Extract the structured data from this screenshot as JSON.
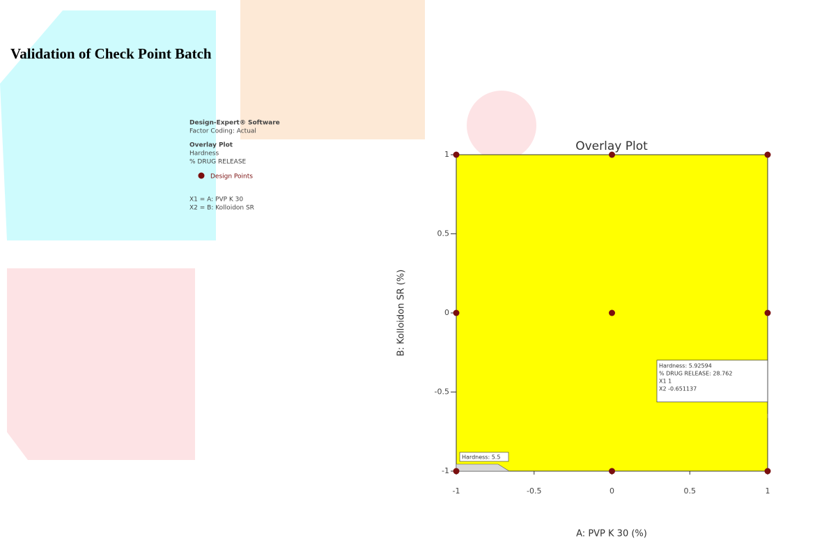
{
  "heading": "Validation of Check Point Batch",
  "info_panel": {
    "software": "Design-Expert® Software",
    "coding": "Factor Coding: Actual",
    "plot_name": "Overlay Plot",
    "responses": [
      "Hardness",
      "% DRUG RELEASE"
    ],
    "factors": [
      "X1 = A: PVP K 30",
      "X2 = B: Kolloidon SR"
    ]
  },
  "chart_data": {
    "type": "scatter",
    "title": "Overlay Plot",
    "x_label": "A: PVP K 30 (%)",
    "y_label": "B: Kolloidon SR (%)",
    "series": [
      {
        "name": "Design Points",
        "color": "#7a0f0f",
        "x": [
          -1,
          0,
          1,
          -1,
          0,
          1,
          -1,
          0,
          1
        ],
        "values": [
          1,
          1,
          1,
          0,
          0,
          0,
          -1,
          -1,
          -1
        ]
      }
    ],
    "xlim": [
      -1,
      1
    ],
    "ylim": [
      -1,
      1
    ],
    "xticks": [
      -1,
      -0.5,
      0,
      0.5,
      1
    ],
    "yticks": [
      -1,
      -0.5,
      0,
      0.5,
      1
    ],
    "region_color": "#ffff00",
    "contour_label": "Hardness: 5.5",
    "flag": {
      "x": 1,
      "y": -0.651137,
      "lines": [
        "Hardness:  5.92594",
        "% DRUG RELEASE:  28.762",
        "X1  1",
        "X2  -0.651137"
      ]
    }
  }
}
